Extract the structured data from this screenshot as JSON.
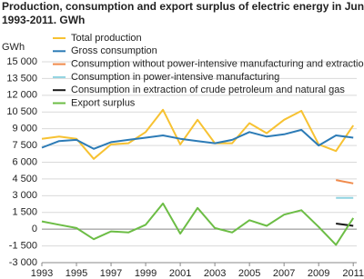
{
  "chart_data": {
    "type": "line",
    "title": "Production, consumption and export surplus of electric energy in June.",
    "subtitle": "1993-2011. GWh",
    "y_label": "GWh",
    "x": [
      1993,
      1994,
      1995,
      1996,
      1997,
      1998,
      1999,
      2000,
      2001,
      2002,
      2003,
      2004,
      2005,
      2006,
      2007,
      2008,
      2009,
      2010,
      2011
    ],
    "xlim": [
      1993,
      2011.2
    ],
    "xticks": [
      1993,
      1995,
      1997,
      1999,
      2001,
      2003,
      2005,
      2007,
      2009,
      2011
    ],
    "ylim": [
      -3000,
      15000
    ],
    "yticks": [
      {
        "value": -3000,
        "label": "-3 000"
      },
      {
        "value": -1500,
        "label": "-1 500"
      },
      0,
      {
        "value": 1500,
        "label": "1 500"
      },
      {
        "value": 3000,
        "label": "3 000"
      },
      {
        "value": 4500,
        "label": "4 500"
      },
      {
        "value": 6000,
        "label": "6 000"
      },
      {
        "value": 7500,
        "label": "7 500"
      },
      {
        "value": 9000,
        "label": "9 000"
      },
      {
        "value": 10500,
        "label": "10 500"
      },
      {
        "value": 12000,
        "label": "12 000"
      },
      {
        "value": 13500,
        "label": "13 500"
      },
      {
        "value": 15000,
        "label": "15 000"
      }
    ],
    "grid": true,
    "legend": "top-left",
    "series": [
      {
        "name": "Total production",
        "color": "#f7c232",
        "values": [
          8100,
          8300,
          8100,
          6300,
          7600,
          7700,
          8700,
          10700,
          7600,
          9800,
          7700,
          7700,
          9500,
          8600,
          9800,
          10600,
          7600,
          7000,
          9300
        ]
      },
      {
        "name": "Gross consumption",
        "color": "#2c7bb6",
        "values": [
          7300,
          7900,
          8000,
          7200,
          7800,
          8000,
          8200,
          8400,
          8100,
          7900,
          7700,
          8000,
          8700,
          8300,
          8500,
          8900,
          7500,
          8400,
          8200
        ]
      },
      {
        "name": "Consumption without power-intensive manufacturing and extraction",
        "color": "#f08a4b",
        "values": [
          null,
          null,
          null,
          null,
          null,
          null,
          null,
          null,
          null,
          null,
          null,
          null,
          null,
          null,
          null,
          null,
          null,
          4400,
          4100
        ]
      },
      {
        "name": "Consumption in power-intensive manufacturing",
        "color": "#8fd3e0",
        "values": [
          null,
          null,
          null,
          null,
          null,
          null,
          null,
          null,
          null,
          null,
          null,
          null,
          null,
          null,
          null,
          null,
          null,
          2800,
          2800
        ]
      },
      {
        "name": "Consumption in extraction of crude petroleum and natural gas",
        "color": "#1a1a1a",
        "values": [
          null,
          null,
          null,
          null,
          null,
          null,
          null,
          null,
          null,
          null,
          null,
          null,
          null,
          null,
          null,
          null,
          null,
          500,
          300
        ]
      },
      {
        "name": "Export surplus",
        "color": "#6cbd45",
        "values": [
          700,
          400,
          100,
          -900,
          -200,
          -300,
          400,
          2300,
          -400,
          1900,
          100,
          -300,
          800,
          300,
          1300,
          1700,
          200,
          -1400,
          1000
        ]
      }
    ]
  }
}
